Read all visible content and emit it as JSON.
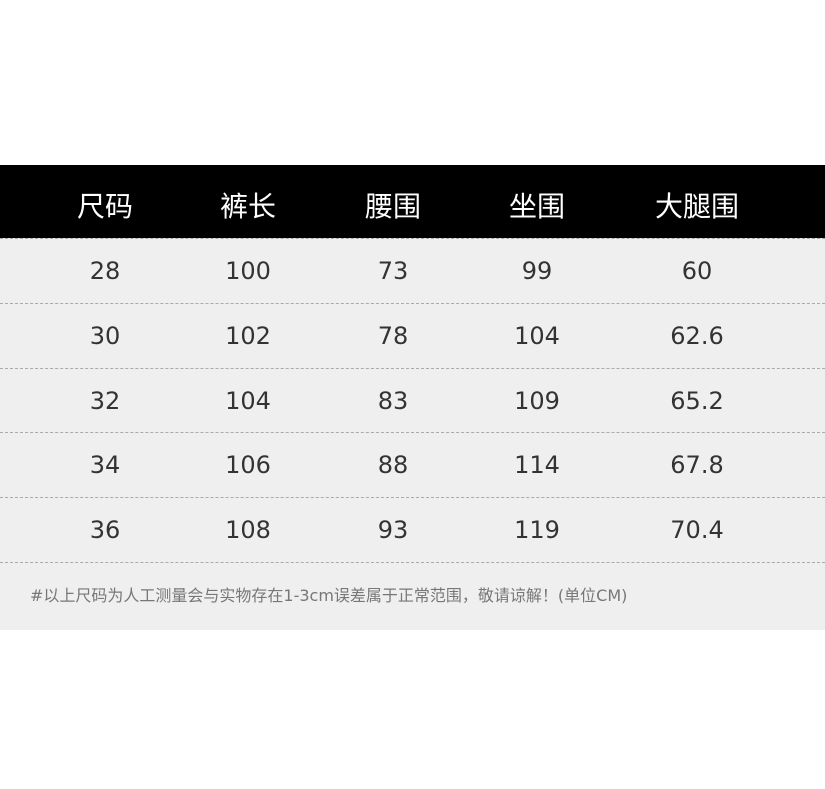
{
  "table": {
    "headers": [
      "尺码",
      "裤长",
      "腰围",
      "坐围",
      "大腿围"
    ],
    "rows": [
      [
        "28",
        "100",
        "73",
        "99",
        "60"
      ],
      [
        "30",
        "102",
        "78",
        "104",
        "62.6"
      ],
      [
        "32",
        "104",
        "83",
        "109",
        "65.2"
      ],
      [
        "34",
        "106",
        "88",
        "114",
        "67.8"
      ],
      [
        "36",
        "108",
        "93",
        "119",
        "70.4"
      ]
    ]
  },
  "note": "#以上尺码为人工测量会与实物存在1-3cm误差属于正常范围，敬请谅解！(单位CM)"
}
